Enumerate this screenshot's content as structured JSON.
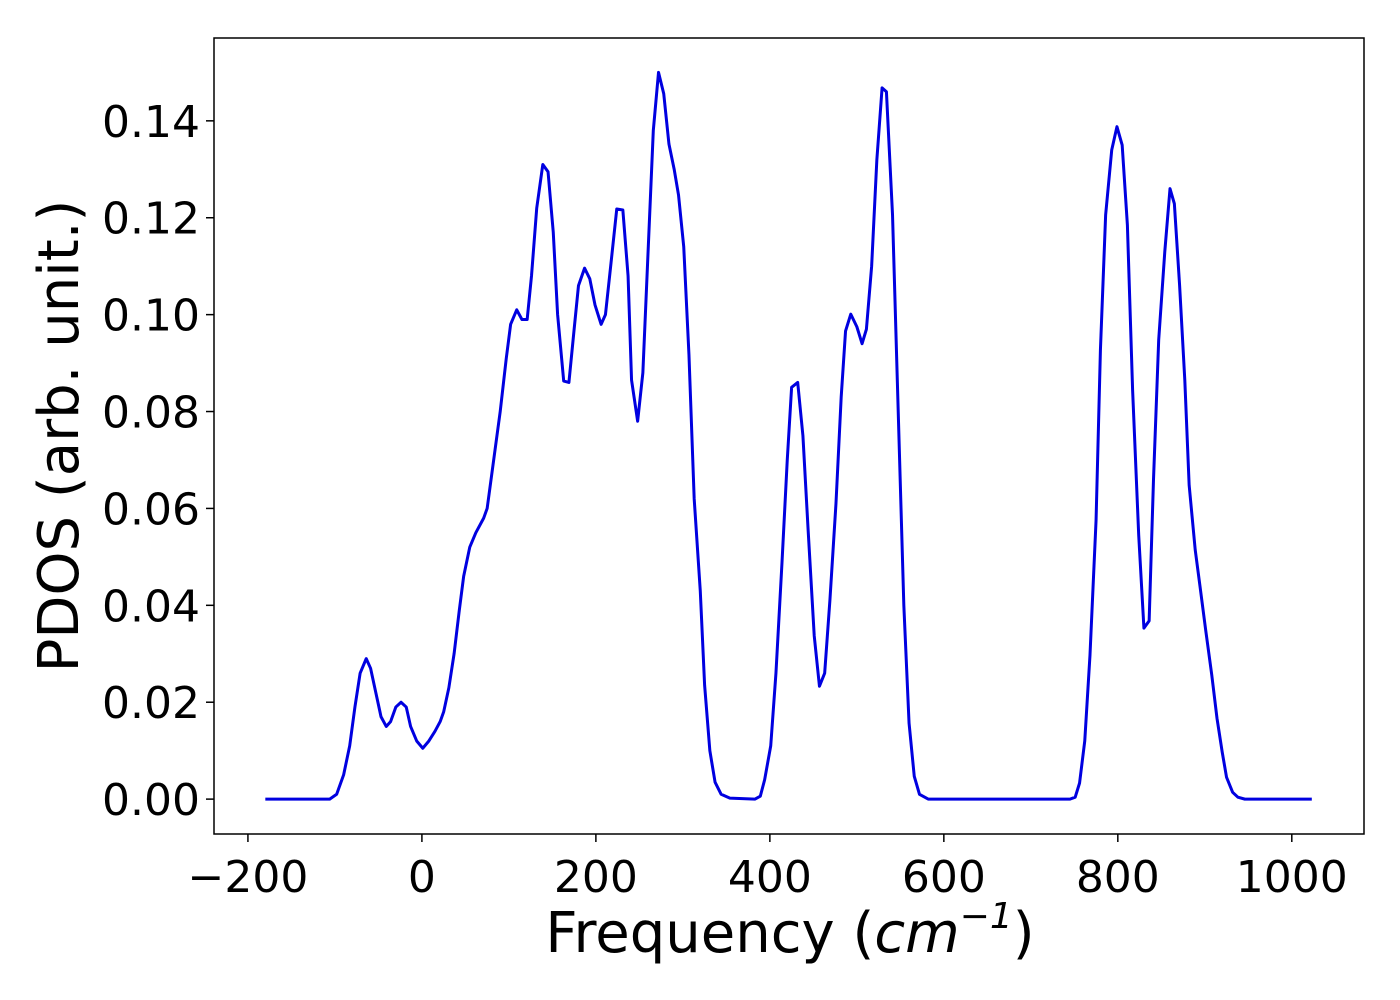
{
  "chart_data": {
    "type": "line",
    "xlabel": [
      "Frequency (",
      "cm",
      "−1",
      ")"
    ],
    "ylabel": "PDOS (arb. unit.)",
    "xlim": [
      -239,
      1083
    ],
    "ylim": [
      -0.0072,
      0.1571
    ],
    "xticks": [
      {
        "value": -200,
        "label": "−200"
      },
      0,
      200,
      400,
      600,
      800,
      1000
    ],
    "yticks": [
      {
        "value": 0,
        "label": "0.00"
      },
      {
        "value": 0.02,
        "label": "0.02"
      },
      {
        "value": 0.04,
        "label": "0.04"
      },
      {
        "value": 0.06,
        "label": "0.06"
      },
      {
        "value": 0.08,
        "label": "0.08"
      },
      {
        "value": 0.1,
        "label": "0.10"
      },
      {
        "value": 0.12,
        "label": "0.12"
      },
      {
        "value": 0.14,
        "label": "0.14"
      }
    ],
    "grid": false,
    "series": [
      {
        "color": "#0000e0",
        "x": [
          -180,
          -106,
          -98,
          -90,
          -83,
          -77,
          -71,
          -64,
          -59,
          -53,
          -47,
          -41,
          -36,
          -30,
          -24,
          -18,
          -13,
          -6,
          1,
          8,
          15,
          21,
          25,
          31,
          37,
          43,
          48,
          55,
          62,
          71,
          75,
          78,
          84,
          90,
          97,
          102,
          109,
          115,
          121,
          126,
          132,
          139,
          145,
          151,
          156,
          163,
          169,
          175,
          180,
          187,
          193,
          199,
          206,
          211,
          217,
          224,
          231,
          237,
          241,
          248,
          254,
          260,
          266,
          272,
          278,
          284,
          290,
          295,
          301,
          307,
          313,
          320,
          325,
          331,
          337,
          344,
          354,
          383,
          389,
          394,
          401,
          407,
          414,
          420,
          425,
          432,
          438,
          444,
          451,
          457,
          463,
          469,
          476,
          482,
          487,
          493,
          500,
          506,
          511,
          517,
          523,
          529,
          534,
          541,
          547,
          554,
          560,
          566,
          572,
          582,
          745,
          751,
          756,
          762,
          768,
          775,
          780,
          786,
          793,
          799,
          805,
          811,
          817,
          824,
          830,
          836,
          841,
          847,
          854,
          860,
          865,
          871,
          877,
          882,
          889,
          895,
          901,
          908,
          914,
          920,
          925,
          932,
          938,
          946,
          1023
        ],
        "values": [
          0,
          0,
          0.001,
          0.005,
          0.011,
          0.019,
          0.026,
          0.029,
          0.027,
          0.022,
          0.017,
          0.015,
          0.016,
          0.019,
          0.02,
          0.019,
          0.015,
          0.012,
          0.0105,
          0.012,
          0.014,
          0.016,
          0.018,
          0.023,
          0.03,
          0.039,
          0.046,
          0.052,
          0.055,
          0.058,
          0.06,
          0.064,
          0.072,
          0.08,
          0.091,
          0.098,
          0.101,
          0.099,
          0.099,
          0.108,
          0.122,
          0.131,
          0.1295,
          0.117,
          0.1,
          0.0863,
          0.086,
          0.097,
          0.106,
          0.1096,
          0.1074,
          0.102,
          0.098,
          0.1,
          0.11,
          0.1218,
          0.1216,
          0.108,
          0.0865,
          0.078,
          0.088,
          0.113,
          0.138,
          0.15,
          0.1456,
          0.1352,
          0.13,
          0.1247,
          0.114,
          0.0917,
          0.062,
          0.043,
          0.0235,
          0.01,
          0.0035,
          0.001,
          0.0002,
          0,
          0.0006,
          0.004,
          0.011,
          0.026,
          0.049,
          0.07,
          0.085,
          0.086,
          0.075,
          0.0555,
          0.0337,
          0.0233,
          0.026,
          0.041,
          0.061,
          0.083,
          0.0966,
          0.1001,
          0.0975,
          0.094,
          0.097,
          0.11,
          0.132,
          0.1468,
          0.146,
          0.1206,
          0.0834,
          0.04,
          0.0157,
          0.0047,
          0.001,
          0,
          0,
          0.0004,
          0.0033,
          0.012,
          0.0297,
          0.0576,
          0.0927,
          0.1206,
          0.134,
          0.1388,
          0.135,
          0.1185,
          0.0844,
          0.0545,
          0.0353,
          0.0368,
          0.0659,
          0.0948,
          0.113,
          0.126,
          0.1229,
          0.1061,
          0.0865,
          0.0648,
          0.0514,
          0.0432,
          0.0349,
          0.0256,
          0.0167,
          0.0097,
          0.0045,
          0.0014,
          0.0004,
          0,
          0
        ]
      }
    ]
  }
}
